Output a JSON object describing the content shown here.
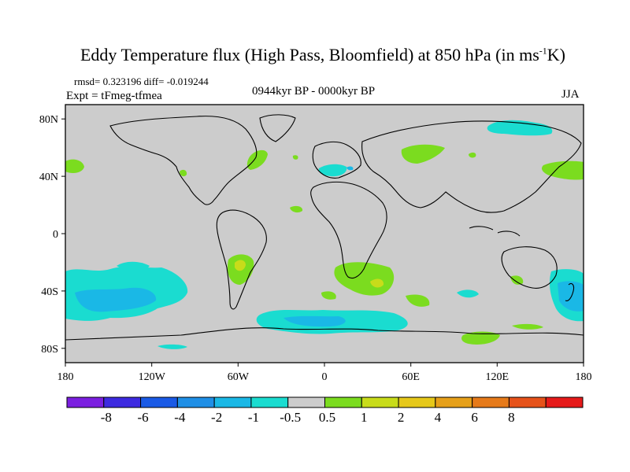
{
  "title_main": "Eddy Temperature flux (High Pass, Bloomfield) at 850 hPa (in ms",
  "title_sup": "-1",
  "title_end": "K)",
  "rmsd_text": "rmsd= 0.323196 diff= -0.019244",
  "expt_text": "Expt = tFmeg-tfmea",
  "period_text": "0944kyr BP - 0000kyr BP",
  "season_text": "JJA",
  "map": {
    "lon_ticks": [
      "180",
      "120W",
      "60W",
      "0",
      "60E",
      "120E",
      "180"
    ],
    "lat_ticks": [
      "80N",
      "40N",
      "0",
      "40S",
      "80S"
    ]
  },
  "colorbar": {
    "colors": [
      "#7b1fe0",
      "#3d2ae0",
      "#1a5ae6",
      "#1f8fe6",
      "#1ab8e6",
      "#1adcd0",
      "#cccccc",
      "#7bdc1f",
      "#c8dc1a",
      "#e6c81a",
      "#e6a01a",
      "#e67a1a",
      "#e6521a",
      "#e61a1a"
    ],
    "labels": [
      "-8",
      "-6",
      "-4",
      "-2",
      "-1",
      "-0.5",
      "0.5",
      "1",
      "2",
      "4",
      "6",
      "8"
    ]
  },
  "colors": {
    "land_bg": "#cccccc",
    "negative": "#1adcd0",
    "negative_strong": "#1ab8e6",
    "positive": "#7bdc1f",
    "positive_strong": "#c8dc1a"
  }
}
